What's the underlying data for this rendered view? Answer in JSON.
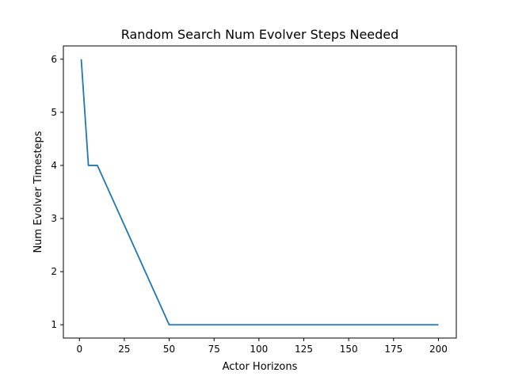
{
  "chart_data": {
    "type": "line",
    "title": "Random Search Num Evolver Steps Needed",
    "xlabel": "Actor Horizons",
    "ylabel": "Num Evolver Timesteps",
    "xlim": [
      -8.95,
      209.95
    ],
    "ylim": [
      0.75,
      6.25
    ],
    "xticks": [
      "0",
      "25",
      "50",
      "75",
      "100",
      "125",
      "150",
      "175",
      "200"
    ],
    "yticks": [
      "1",
      "2",
      "3",
      "4",
      "5",
      "6"
    ],
    "grid": false,
    "series": [
      {
        "color": "#1f77b4",
        "x": [
          1,
          5,
          10,
          50,
          100,
          200
        ],
        "y": [
          6,
          4,
          4,
          1,
          1,
          1
        ]
      }
    ]
  }
}
